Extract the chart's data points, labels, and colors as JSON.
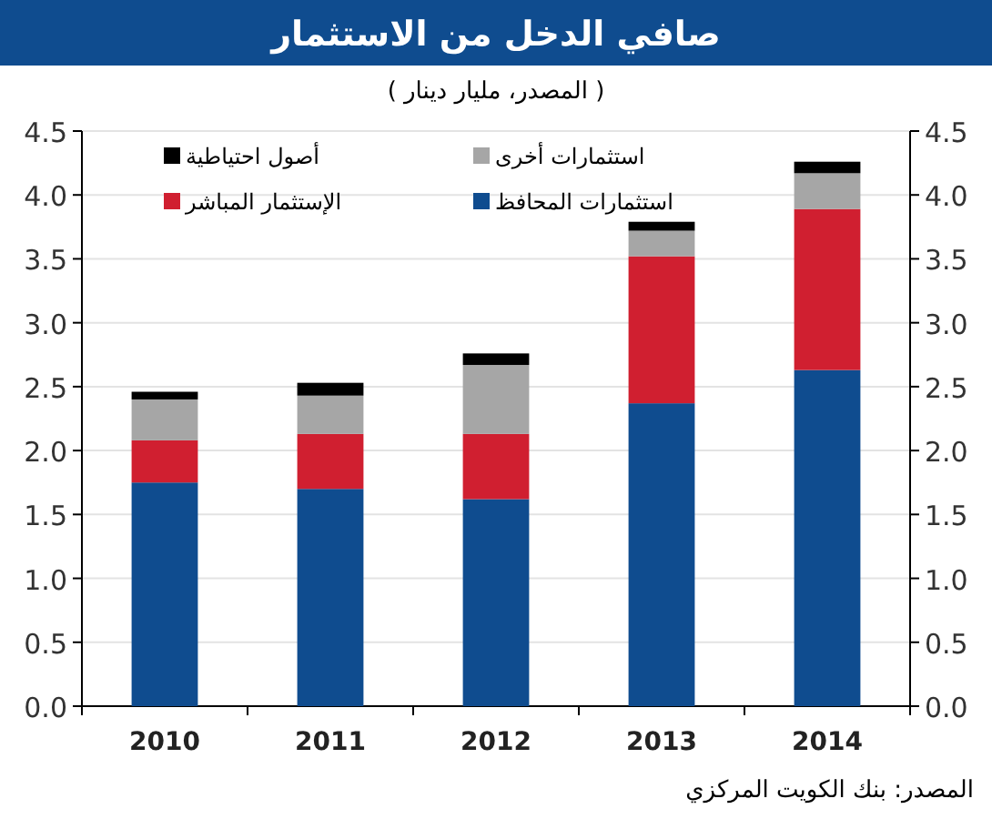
{
  "chart_data": {
    "type": "bar",
    "title": "صافي الدخل من الاستثمار",
    "subtitle": "( المصدر، مليار دينار )",
    "categories": [
      "2010",
      "2011",
      "2012",
      "2013",
      "2014"
    ],
    "stacked": true,
    "series": [
      {
        "name": "استثمارات المحافظ",
        "color": "#0f4c8f",
        "values": [
          1.75,
          1.7,
          1.62,
          2.37,
          2.63
        ]
      },
      {
        "name": "الإستثمار المباشر",
        "color": "#d01f30",
        "values": [
          0.33,
          0.43,
          0.51,
          1.15,
          1.26
        ]
      },
      {
        "name": "استثمارات أخرى",
        "color": "#a6a6a6",
        "values": [
          0.32,
          0.3,
          0.54,
          0.2,
          0.28
        ]
      },
      {
        "name": "أصول احتياطية",
        "color": "#000000",
        "values": [
          0.06,
          0.1,
          0.09,
          0.07,
          0.09
        ]
      }
    ],
    "ylim": [
      0,
      4.5
    ],
    "yticks": [
      {
        "value": 0,
        "label": "0.0"
      },
      {
        "value": 0.5,
        "label": "0.5"
      },
      {
        "value": 1,
        "label": "1.0"
      },
      {
        "value": 1.5,
        "label": "1.5"
      },
      {
        "value": 2,
        "label": "2.0"
      },
      {
        "value": 2.5,
        "label": "2.5"
      },
      {
        "value": 3,
        "label": "3.0"
      },
      {
        "value": 3.5,
        "label": "3.5"
      },
      {
        "value": 4,
        "label": "4.0"
      },
      {
        "value": 4.5,
        "label": "4.5"
      }
    ],
    "y2lim": [
      0,
      4.5
    ],
    "y2ticks": [
      {
        "value": 0,
        "label": "0.0"
      },
      {
        "value": 0.5,
        "label": "0.5"
      },
      {
        "value": 1,
        "label": "1.0"
      },
      {
        "value": 1.5,
        "label": "1.5"
      },
      {
        "value": 2,
        "label": "2.0"
      },
      {
        "value": 2.5,
        "label": "2.5"
      },
      {
        "value": 3,
        "label": "3.0"
      },
      {
        "value": 3.5,
        "label": "3.5"
      },
      {
        "value": 4,
        "label": "4.0"
      },
      {
        "value": 4.5,
        "label": "4.5"
      }
    ],
    "grid": "y",
    "legend": "top left",
    "annotations": [
      "المصدر: بنك الكويت المركزي"
    ]
  }
}
